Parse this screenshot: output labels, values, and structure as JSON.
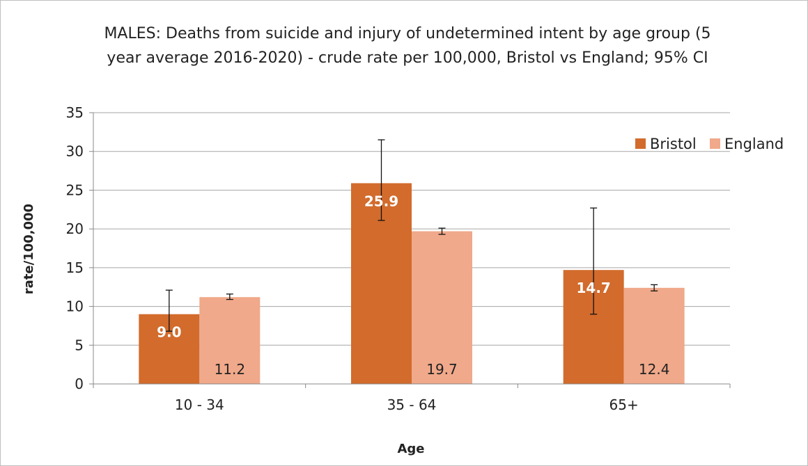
{
  "chart_data": {
    "type": "bar",
    "title_line1": "MALES: Deaths from suicide and injury of undetermined intent by age group (5",
    "title_line2": "year average 2016-2020) - crude rate per 100,000, Bristol vs England; 95% CI",
    "xlabel": "Age",
    "ylabel": "rate/100,000",
    "ylim": [
      0,
      35
    ],
    "yticks": [
      0,
      5,
      10,
      15,
      20,
      25,
      30,
      35
    ],
    "ytick_labels": [
      "0",
      "5",
      "10",
      "15",
      "20",
      "25",
      "30",
      "35"
    ],
    "grid": true,
    "legend_position": "top-right",
    "categories": [
      "10 - 34",
      "35 - 64",
      "65+"
    ],
    "series": [
      {
        "name": "Bristol",
        "color": "#d26b2c",
        "label_color": "#ffffff",
        "label_bold": true,
        "label_position": "inside-low",
        "values": [
          9.0,
          25.9,
          14.7
        ],
        "labels": [
          "9.0",
          "25.9",
          "14.7"
        ],
        "ci_low": [
          6.8,
          21.1,
          9.0
        ],
        "ci_high": [
          12.1,
          31.5,
          22.7
        ]
      },
      {
        "name": "England",
        "color": "#f0a98a",
        "label_color": "#222222",
        "label_bold": false,
        "label_position": "inside-base",
        "values": [
          11.2,
          19.7,
          12.4
        ],
        "labels": [
          "11.2",
          "19.7",
          "12.4"
        ],
        "ci_low": [
          10.9,
          19.3,
          12.0
        ],
        "ci_high": [
          11.6,
          20.1,
          12.8
        ]
      }
    ]
  }
}
